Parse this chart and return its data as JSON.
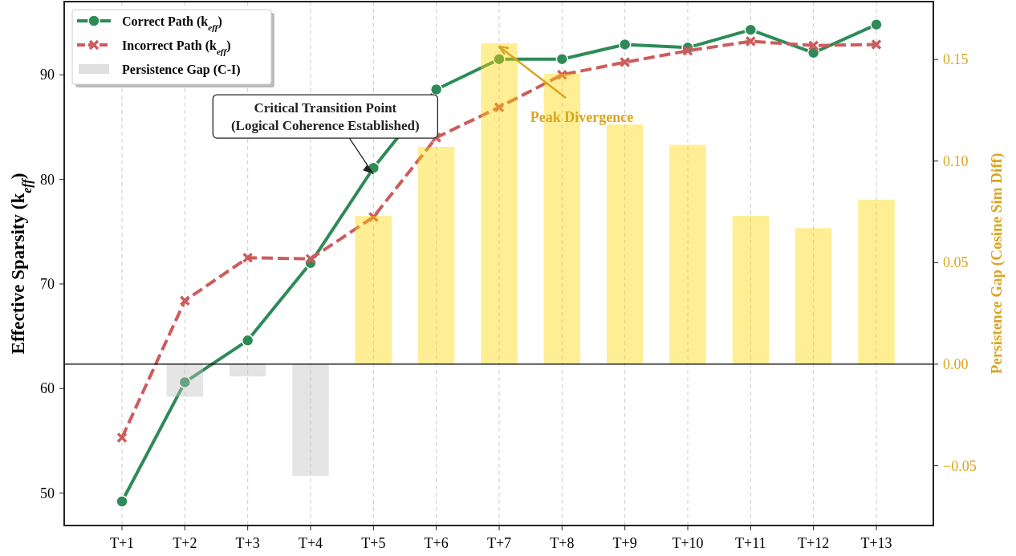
{
  "chart_data": {
    "type": "line",
    "categories": [
      "T+1",
      "T+2",
      "T+3",
      "T+4",
      "T+5",
      "T+6",
      "T+7",
      "T+8",
      "T+9",
      "T+10",
      "T+11",
      "T+12",
      "T+13"
    ],
    "ylabel": "Effective Sparsity (k$_{eff}$)",
    "y2label": "Persistence Gap (Cosine Sim Diff)",
    "ylim": [
      46.9,
      97.0
    ],
    "yticks": [
      50,
      60,
      70,
      80,
      90
    ],
    "y2lim": [
      -0.0794,
      0.1785
    ],
    "y2ticks": [
      {
        "value": -0.05,
        "label": "−0.05"
      },
      {
        "value": 0,
        "label": "0.00"
      },
      {
        "value": 0.05,
        "label": "0.05"
      },
      {
        "value": 0.1,
        "label": "0.10"
      },
      {
        "value": 0.15,
        "label": "0.15"
      }
    ],
    "series": [
      {
        "name": "Correct Path (k$_{eff}$)",
        "color": "#2e8b57",
        "marker": "circle",
        "line_style": "solid",
        "values": [
          49.2,
          60.6,
          64.6,
          72.0,
          81.1,
          88.6,
          91.5,
          91.5,
          92.9,
          92.6,
          94.3,
          92.1,
          94.8
        ]
      },
      {
        "name": "Incorrect Path (k$_{eff}$)",
        "color": "#cd5c5c",
        "marker": "cross",
        "line_style": "dashed",
        "values": [
          55.3,
          68.4,
          72.5,
          72.4,
          76.4,
          84.0,
          86.9,
          90.0,
          91.2,
          92.3,
          93.2,
          92.8,
          92.9
        ]
      },
      {
        "name": "Persistence Gap (C-I)",
        "type": "bar",
        "axis": "y2",
        "color": "#c0c0c0",
        "colors": [
          "#c0c0c0",
          "#c0c0c0",
          "#c0c0c0",
          "#c0c0c0",
          "#ffd700",
          "#ffd700",
          "#ffd700",
          "#ffd700",
          "#ffd700",
          "#ffd700",
          "#ffd700",
          "#ffd700",
          "#ffd700"
        ],
        "values": [
          null,
          -0.016,
          -0.006,
          -0.055,
          0.073,
          0.107,
          0.158,
          0.143,
          0.118,
          0.108,
          0.073,
          0.067,
          0.081
        ]
      }
    ],
    "ref_lines": [
      {
        "axis": "y2",
        "value": 0,
        "color": "#000000"
      }
    ],
    "annotations": [
      {
        "text": "Critical Transition Point\n(Logical Coherence Established)",
        "x": "T+5",
        "y": 80.5
      },
      {
        "text": "Peak Divergence",
        "x": "T+7",
        "y": 92.7
      }
    ],
    "grid": "x",
    "legend": "top left"
  }
}
